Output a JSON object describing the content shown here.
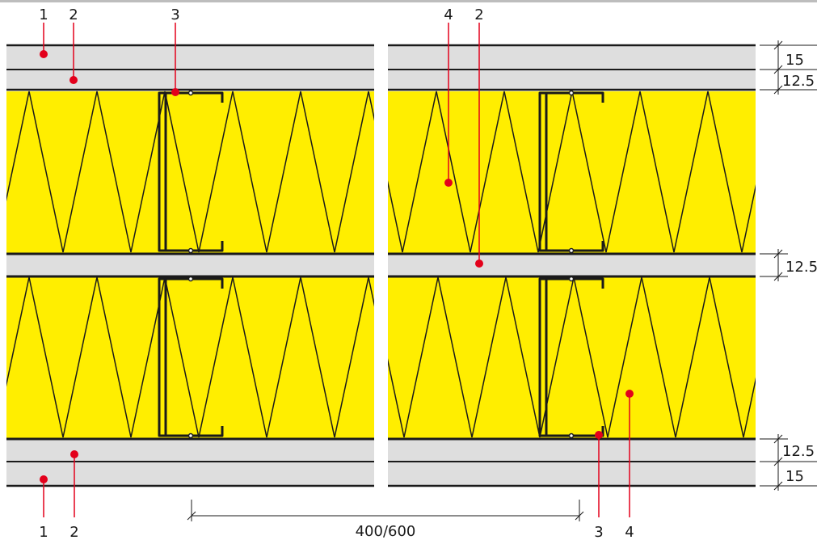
{
  "labels": {
    "top": [
      "1",
      "2",
      "3",
      "4",
      "2"
    ],
    "bottom": [
      "1",
      "2",
      "3",
      "4"
    ]
  },
  "dimensions": {
    "top_board": "15",
    "second_board": "12.5",
    "middle_board": "12.5",
    "lower_board": "12.5",
    "bottom_board": "15",
    "stud_spacing": "400/600"
  },
  "colors": {
    "board": "#dedede",
    "insulation": "#ffee00",
    "marker": "#e3001b",
    "line": "#1a1a1a"
  }
}
